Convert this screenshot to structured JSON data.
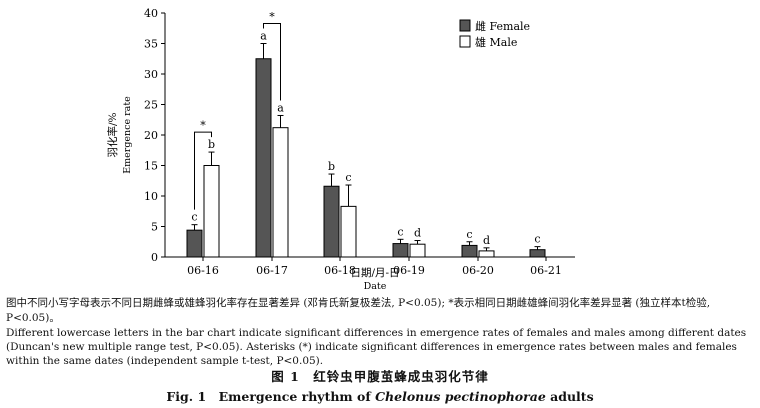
{
  "chart_data": {
    "type": "bar",
    "categories": [
      "06-16",
      "06-17",
      "06-18",
      "06-19",
      "06-20",
      "06-21"
    ],
    "series": [
      {
        "name": "雌 Female",
        "fill": "#555555",
        "values": [
          4.4,
          32.5,
          11.6,
          2.2,
          1.9,
          1.2
        ],
        "errors": [
          0.9,
          2.5,
          2.0,
          0.7,
          0.6,
          0.5
        ],
        "letters": [
          "c",
          "a",
          "b",
          "c",
          "c",
          "c"
        ]
      },
      {
        "name": "雄 Male",
        "fill": "#ffffff",
        "values": [
          15.0,
          21.2,
          8.3,
          2.1,
          1.0,
          null
        ],
        "errors": [
          2.2,
          2.0,
          3.5,
          0.6,
          0.5,
          null
        ],
        "letters": [
          "b",
          "a",
          "c",
          "d",
          "d",
          ""
        ]
      }
    ],
    "significance": [
      {
        "category": "06-16",
        "label": "*"
      },
      {
        "category": "06-17",
        "label": "*"
      }
    ],
    "ylabel_zh": "羽化率/%",
    "ylabel_en": "Emergence rate",
    "xlabel_zh": "日期/月-日",
    "xlabel_en": "Date",
    "ylim": [
      0,
      40
    ],
    "yticks": [
      0,
      5,
      10,
      15,
      20,
      25,
      30,
      35,
      40
    ],
    "grid": false,
    "legend_position": "top-right"
  },
  "captions": {
    "note_zh": "图中不同小写字母表示不同日期雌蜂或雄蜂羽化率存在显著差异 (邓肯氏新复极差法, P<0.05); *表示相同日期雌雄蜂间羽化率差异显著 (独立样本t检验, P<0.05)。",
    "note_en": "Different lowercase letters in the bar chart indicate significant differences in emergence rates of females and males among different dates (Duncan's new multiple range test, P<0.05). Asterisks (*) indicate significant differences in emergence rates between males and females within the same dates (independent sample t-test, P<0.05).",
    "figure_zh": "图 1　红铃虫甲腹茧蜂成虫羽化节律",
    "figure_en_prefix": "Fig. 1　Emergence rhythm of ",
    "figure_en_species": "Chelonus pectinophorae",
    "figure_en_suffix": " adults"
  }
}
